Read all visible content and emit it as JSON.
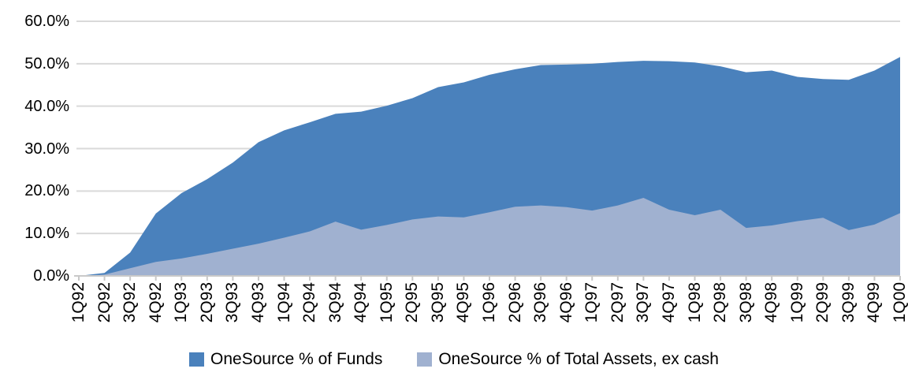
{
  "chart_data": {
    "type": "area",
    "title": "",
    "categories": [
      "1Q92",
      "2Q92",
      "3Q92",
      "4Q92",
      "1Q93",
      "2Q93",
      "3Q93",
      "4Q93",
      "1Q94",
      "2Q94",
      "3Q94",
      "4Q94",
      "1Q95",
      "2Q95",
      "3Q95",
      "4Q95",
      "1Q96",
      "2Q96",
      "3Q96",
      "4Q96",
      "1Q97",
      "2Q97",
      "3Q97",
      "4Q97",
      "1Q98",
      "2Q98",
      "3Q98",
      "4Q98",
      "1Q99",
      "2Q99",
      "3Q99",
      "4Q99",
      "1Q00"
    ],
    "series": [
      {
        "name": "OneSource % of Funds",
        "color": "#4A81BC",
        "values": [
          0.0,
          0.7,
          5.5,
          14.7,
          19.5,
          22.8,
          26.7,
          31.5,
          34.3,
          36.2,
          38.2,
          38.7,
          40.1,
          41.9,
          44.5,
          45.6,
          47.4,
          48.7,
          49.7,
          49.8,
          50.0,
          50.4,
          50.7,
          50.6,
          50.3,
          49.4,
          48.0,
          48.4,
          46.9,
          46.4,
          46.2,
          48.4,
          51.6
        ]
      },
      {
        "name": "OneSource % of Total Assets, ex cash",
        "color": "#A0B1D0",
        "values": [
          0.0,
          0.3,
          1.8,
          3.3,
          4.1,
          5.2,
          6.4,
          7.6,
          9.0,
          10.5,
          12.8,
          10.9,
          12.0,
          13.3,
          14.0,
          13.8,
          15.0,
          16.3,
          16.6,
          16.2,
          15.4,
          16.6,
          18.4,
          15.6,
          14.3,
          15.6,
          11.3,
          11.9,
          12.9,
          13.7,
          10.8,
          12.1,
          14.8
        ]
      }
    ],
    "ylim": [
      0,
      60
    ],
    "ytick_labels": [
      "0.0%",
      "10.0%",
      "20.0%",
      "30.0%",
      "40.0%",
      "50.0%",
      "60.0%"
    ],
    "xlabel": "",
    "ylabel": "",
    "grid": true,
    "legend_position": "bottom",
    "gridline_color": "#D9D9D9",
    "axis_color": "#C9C9C9",
    "text_color": "#000000",
    "background": "#FFFFFF"
  }
}
